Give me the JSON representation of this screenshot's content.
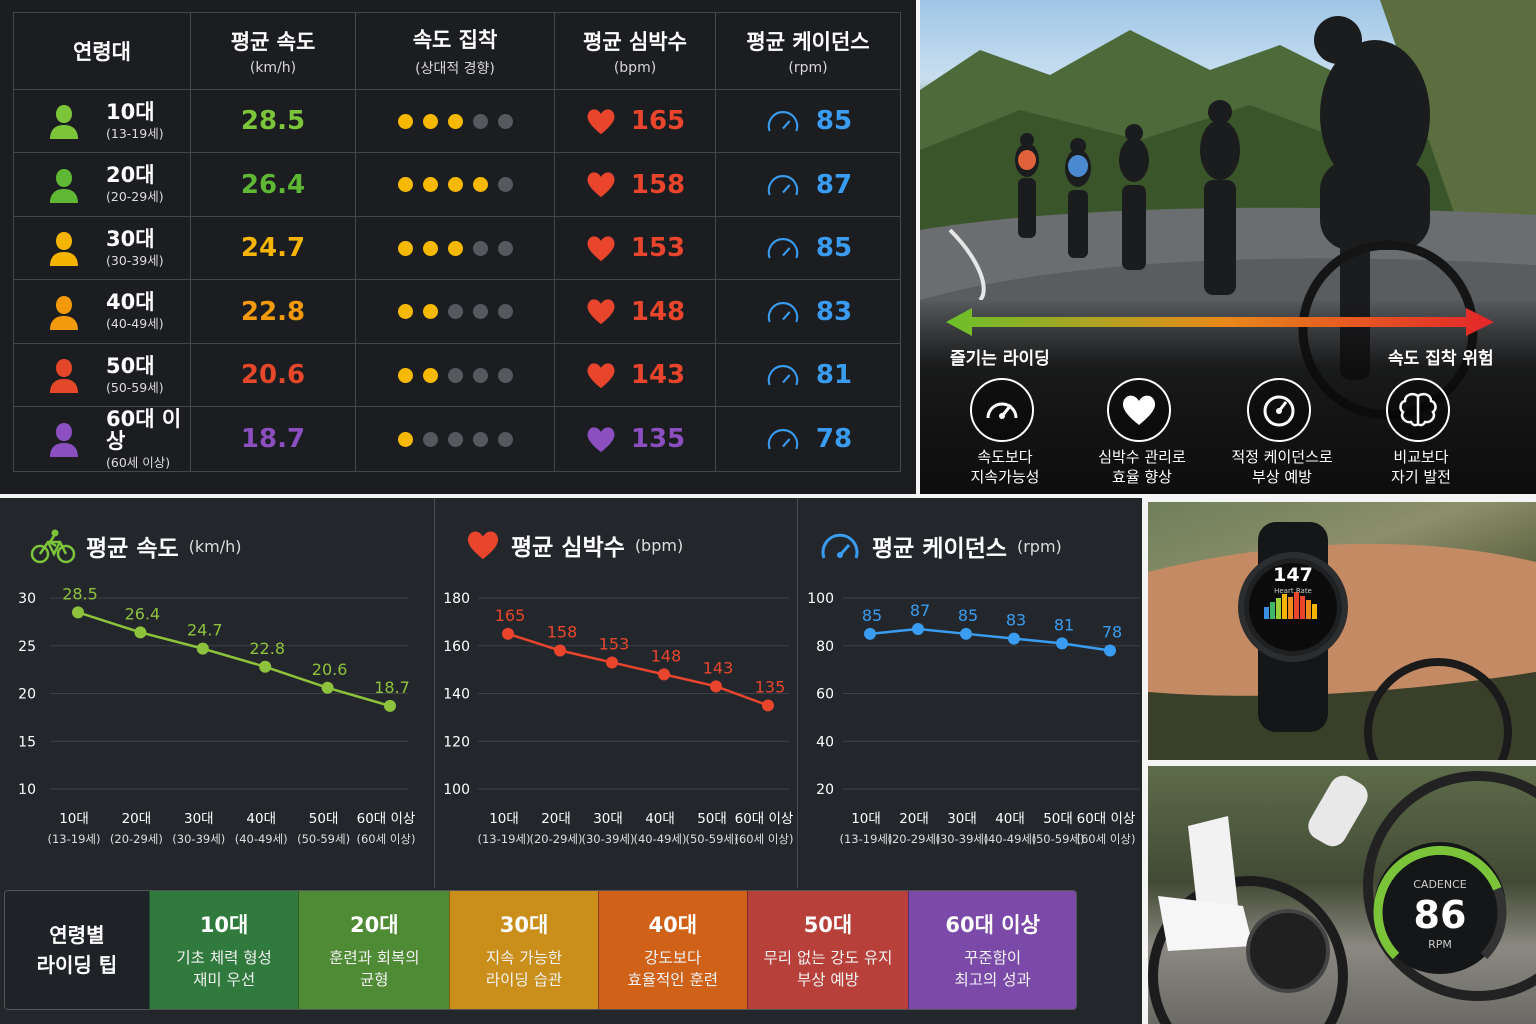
{
  "table": {
    "headers": {
      "age": "연령대",
      "speed": "평균 속도",
      "speed_unit": "(km/h)",
      "obsession": "속도 집착",
      "obsession_sub": "(상대적 경향)",
      "hr": "평균 심박수",
      "hr_unit": "(bpm)",
      "cadence": "평균 케이던스",
      "cadence_unit": "(rpm)"
    },
    "rows": [
      {
        "age": "10대",
        "range": "(13-19세)",
        "speed": "28.5",
        "dots": 3,
        "hr": "165",
        "cadence": "85",
        "color": "#7cc43a",
        "hr_color": "#e8452c"
      },
      {
        "age": "20대",
        "range": "(20-29세)",
        "speed": "26.4",
        "dots": 4,
        "hr": "158",
        "cadence": "87",
        "color": "#5fb834",
        "hr_color": "#e8452c"
      },
      {
        "age": "30대",
        "range": "(30-39세)",
        "speed": "24.7",
        "dots": 3,
        "hr": "153",
        "cadence": "85",
        "color": "#f5b400",
        "hr_color": "#e8452c"
      },
      {
        "age": "40대",
        "range": "(40-49세)",
        "speed": "22.8",
        "dots": 2,
        "hr": "148",
        "cadence": "83",
        "color": "#f39a0c",
        "hr_color": "#e8452c"
      },
      {
        "age": "50대",
        "range": "(50-59세)",
        "speed": "20.6",
        "dots": 2,
        "hr": "143",
        "cadence": "81",
        "color": "#e4472a",
        "hr_color": "#e8452c"
      },
      {
        "age": "60대 이상",
        "range": "(60세 이상)",
        "speed": "18.7",
        "dots": 1,
        "hr": "135",
        "cadence": "78",
        "color": "#8b4fc0",
        "hr_color": "#8b4fc0"
      }
    ]
  },
  "photo": {
    "left_label": "즐기는 라이딩",
    "right_label": "속도 집착 위험",
    "tips": [
      {
        "icon": "speedometer-icon",
        "line1": "속도보다",
        "line2": "지속가능성"
      },
      {
        "icon": "heart-icon",
        "line1": "심박수 관리로",
        "line2": "효율 향상"
      },
      {
        "icon": "gauge-icon",
        "line1": "적정 케이던스로",
        "line2": "부상 예방"
      },
      {
        "icon": "brain-icon",
        "line1": "비교보다",
        "line2": "자기 발전"
      }
    ]
  },
  "watch": {
    "value": "147",
    "label": "Heart Rate"
  },
  "cadence_gauge": {
    "title": "CADENCE",
    "value": "86",
    "unit": "RPM",
    "fill": 0.75
  },
  "colors": {
    "speed": "#8fc23c",
    "hr": "#e8452c",
    "cadence": "#3a9cf0",
    "dots_on": "#f6b800"
  },
  "chart_data": [
    {
      "type": "line",
      "title": "평균 속도",
      "unit": "(km/h)",
      "categories": [
        "10대",
        "20대",
        "30대",
        "40대",
        "50대",
        "60대 이상"
      ],
      "category_subs": [
        "(13-19세)",
        "(20-29세)",
        "(30-39세)",
        "(40-49세)",
        "(50-59세)",
        "(60세 이상)"
      ],
      "values": [
        28.5,
        26.4,
        24.7,
        22.8,
        20.6,
        18.7
      ],
      "ylim": [
        10,
        30
      ],
      "yticks": [
        10,
        15,
        20,
        25,
        30
      ],
      "color": "#8fc23c",
      "grid": true
    },
    {
      "type": "line",
      "title": "평균 심박수",
      "unit": "(bpm)",
      "categories": [
        "10대",
        "20대",
        "30대",
        "40대",
        "50대",
        "60대 이상"
      ],
      "category_subs": [
        "(13-19세)",
        "(20-29세)",
        "(30-39세)",
        "(40-49세)",
        "(50-59세)",
        "(60세 이상)"
      ],
      "values": [
        165,
        158,
        153,
        148,
        143,
        135
      ],
      "ylim": [
        100,
        180
      ],
      "yticks": [
        100,
        120,
        140,
        160,
        180
      ],
      "color": "#e8452c",
      "grid": true
    },
    {
      "type": "line",
      "title": "평균 케이던스",
      "unit": "(rpm)",
      "categories": [
        "10대",
        "20대",
        "30대",
        "40대",
        "50대",
        "60대 이상"
      ],
      "category_subs": [
        "(13-19세)",
        "(20-29세)",
        "(30-39세)",
        "(40-49세)",
        "(50-59세)",
        "(60세 이상)"
      ],
      "values": [
        85,
        87,
        85,
        83,
        81,
        78
      ],
      "ylim": [
        20,
        100
      ],
      "yticks": [
        20,
        40,
        60,
        80,
        100
      ],
      "color": "#3a9cf0",
      "grid": true
    }
  ],
  "tips_row": {
    "head_line1": "연령별",
    "head_line2": "라이딩 팁",
    "cards": [
      {
        "age": "10대",
        "line1": "기초 체력 형성",
        "line2": "재미 우선",
        "color": "#2f7a3c"
      },
      {
        "age": "20대",
        "line1": "훈련과 회복의",
        "line2": "균형",
        "color": "#4f8a35"
      },
      {
        "age": "30대",
        "line1": "지속 가능한",
        "line2": "라이딩 습관",
        "color": "#c98f1a"
      },
      {
        "age": "40대",
        "line1": "강도보다",
        "line2": "효율적인 훈련",
        "color": "#cf6218"
      },
      {
        "age": "50대",
        "line1": "무리 없는 강도 유지",
        "line2": "부상 예방",
        "color": "#b8403a"
      },
      {
        "age": "60대 이상",
        "line1": "꾸준함이",
        "line2": "최고의 성과",
        "color": "#7b4aa8"
      }
    ]
  }
}
